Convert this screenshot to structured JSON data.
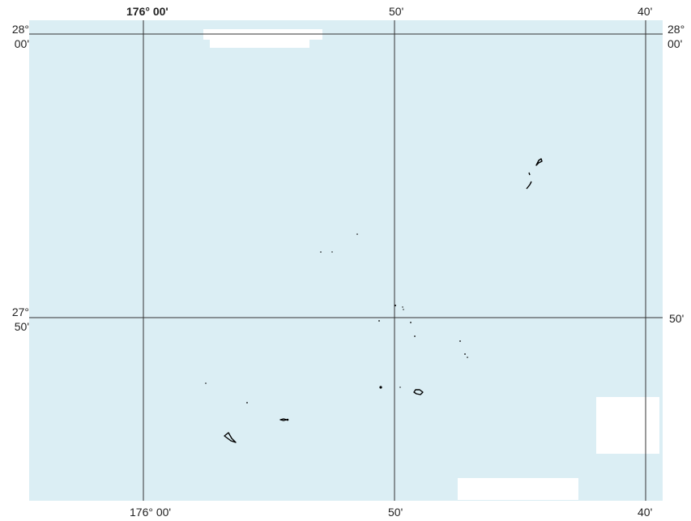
{
  "map": {
    "background_color": "#dbeef4",
    "grid_color": "#333333",
    "land_outline_color": "#000000",
    "label_box_color": "#ffffff"
  },
  "labels": {
    "top": {
      "lon_176_00": "176° 00'",
      "lon_50": "50'",
      "lon_40": "40'"
    },
    "bottom": {
      "lon_176_00": "176° 00'",
      "lon_50": "50'",
      "lon_40": "40'"
    },
    "left": {
      "lat_28_deg": "28°",
      "lat_28_min": "00'",
      "lat_27_deg": "27°",
      "lat_27_min": "50'"
    },
    "right": {
      "lat_28_deg": "28°",
      "lat_28_min": "00'",
      "lat_50": "50'"
    }
  }
}
